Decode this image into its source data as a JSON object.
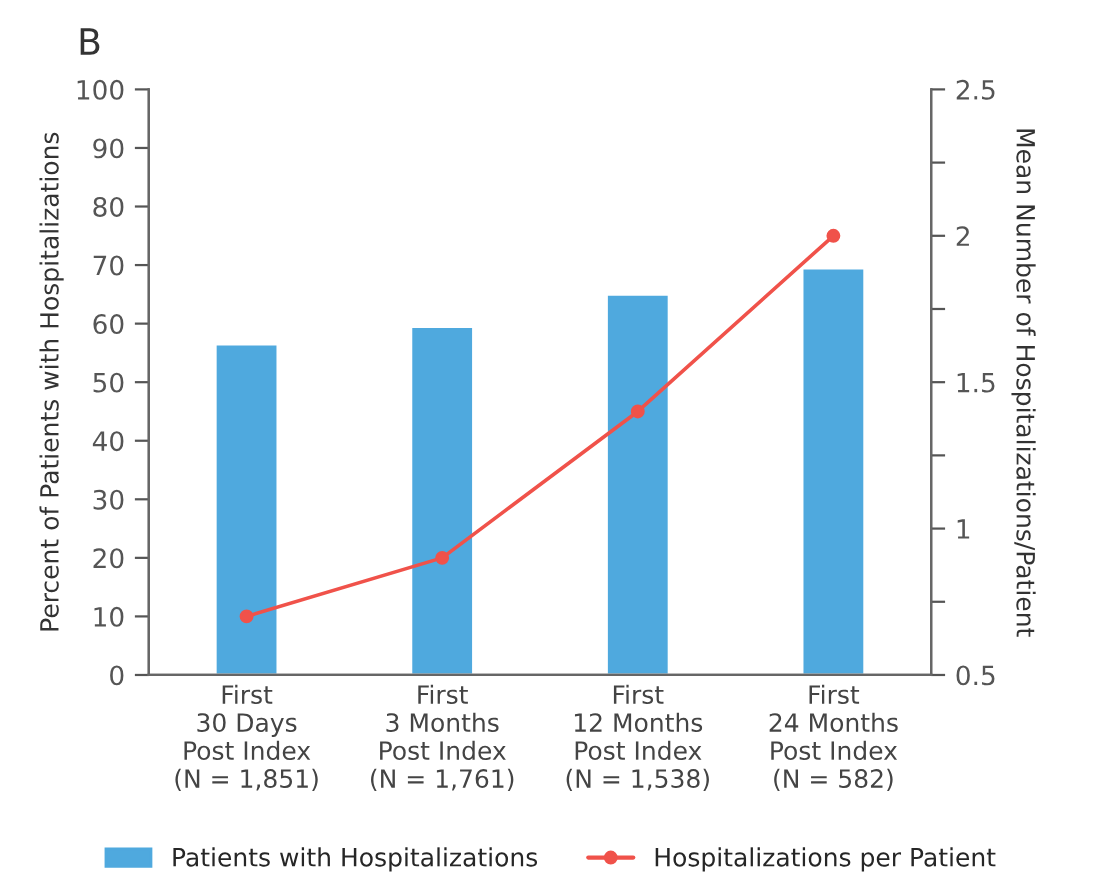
{
  "chart_data": {
    "type": "bar",
    "annotations": [
      "B"
    ],
    "categories": [
      "First\n30 Days\nPost Index\n(N = 1,851)",
      "First\n3 Months\nPost Index\n(N = 1,761)",
      "First\n12 Months\nPost Index\n(N = 1,538)",
      "First\n24 Months\nPost Index\n(N = 582)"
    ],
    "series": [
      {
        "name": "Patients with Hospitalizations",
        "color": "#4fa9de",
        "values": [
          56.5,
          59.5,
          65,
          69.5
        ]
      },
      {
        "name": "Hospitalizations per Patient",
        "type": "line",
        "axis": "y2",
        "color": "#f0524a",
        "marker": "circle",
        "values": [
          0.7,
          0.9,
          1.4,
          2.0
        ]
      }
    ],
    "ylabel": "Percent of Patients with Hospitalizations",
    "y2label": "Mean Number of Hospitalizations/Patient",
    "ylim": [
      0,
      100
    ],
    "yticks": [
      0,
      10,
      20,
      30,
      40,
      50,
      60,
      70,
      80,
      90,
      100
    ],
    "y2lim": [
      0.5,
      2.5
    ],
    "y2ticks": [
      {
        "value": 0.5,
        "label": "0.5"
      },
      {
        "value": 0.75,
        "label": null
      },
      {
        "value": 1,
        "label": "1"
      },
      {
        "value": 1.25,
        "label": null
      },
      {
        "value": 1.5,
        "label": "1.5"
      },
      {
        "value": 1.75,
        "label": null
      },
      {
        "value": 2,
        "label": "2"
      },
      {
        "value": 2.25,
        "label": null
      },
      {
        "value": 2.5,
        "label": "2.5"
      }
    ],
    "grid": false,
    "legend": "bottom"
  }
}
